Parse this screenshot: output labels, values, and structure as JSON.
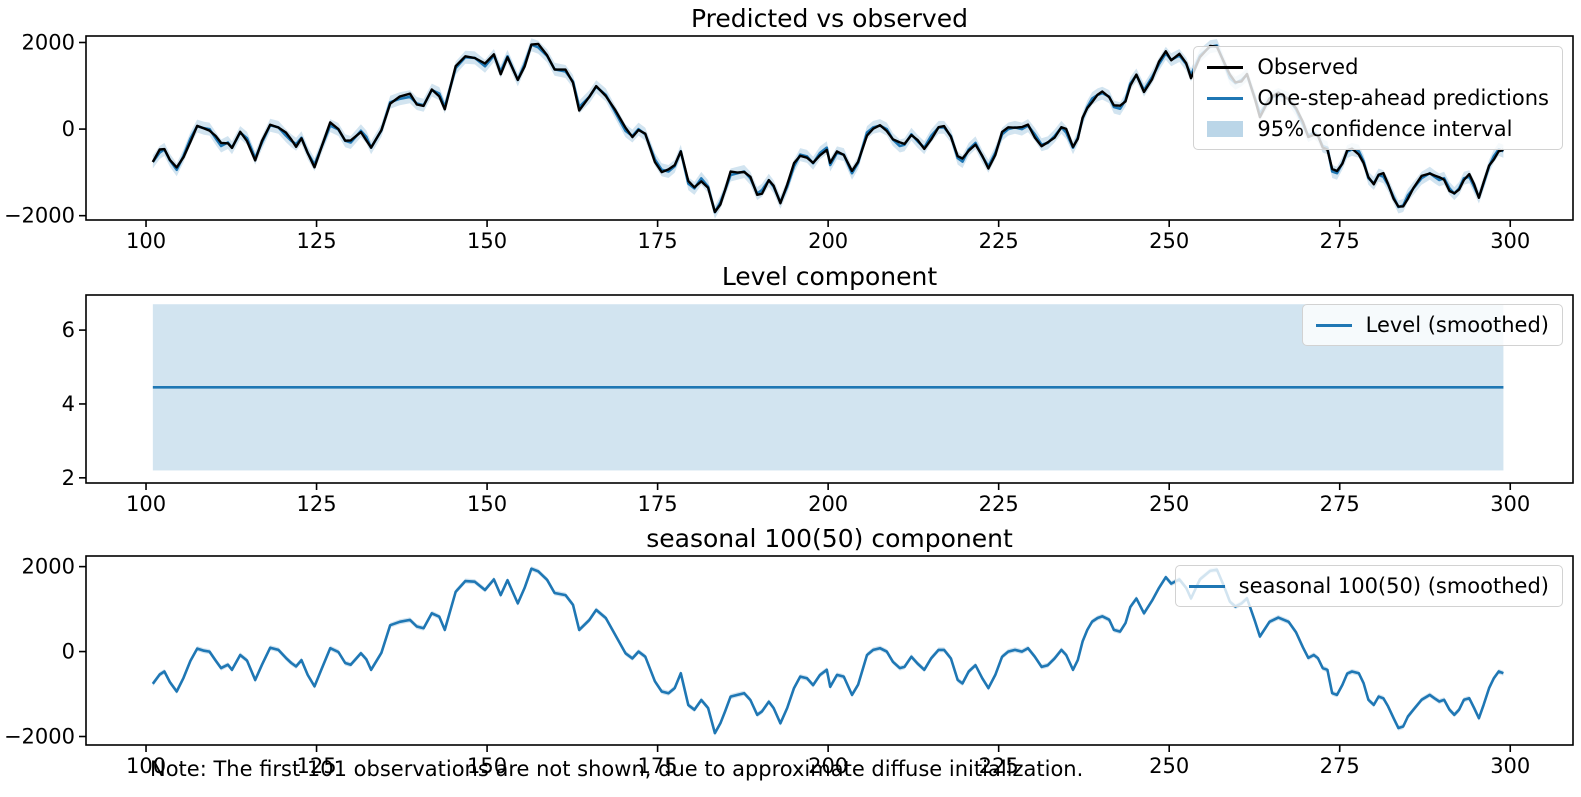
{
  "figure": {
    "note": "Note: The first 101 observations are not shown, due to approximate diffuse initialization."
  },
  "colors": {
    "observed": "#000000",
    "predicted": "#1f77b4",
    "ci_fill": "rgba(31,119,180,0.2)",
    "ci_legend_patch": "rgba(31,119,180,0.3)",
    "spine": "#000000"
  },
  "chart_data": [
    {
      "id": "predicted-vs-observed",
      "type": "line",
      "title": "Predicted vs observed",
      "xlim": [
        91.2,
        309.2
      ],
      "ylim": [
        -2100,
        2150
      ],
      "grid": false,
      "legend_position": "upper right",
      "x_ticks": {
        "values": [
          100,
          125,
          150,
          175,
          200,
          225,
          250,
          275,
          300
        ],
        "labels": [
          "100",
          "125",
          "150",
          "175",
          "200",
          "225",
          "250",
          "275",
          "300"
        ]
      },
      "y_ticks": {
        "values": [
          -2000,
          0,
          2000
        ],
        "labels": [
          "−2000",
          "0",
          "2000"
        ]
      },
      "legend": [
        {
          "label": "Observed",
          "swatch": "line",
          "color": "#000000"
        },
        {
          "label": "One-step-ahead predictions",
          "swatch": "line",
          "color": "#1f77b4"
        },
        {
          "label": "95% confidence interval",
          "swatch": "patch",
          "color": "rgba(31,119,180,0.3)"
        }
      ],
      "series": [
        {
          "name": "Observed",
          "source": "seasonal",
          "color": "#000000",
          "noise": {
            "amplitude": 85,
            "f1": 1.93,
            "f2": 0.73
          }
        },
        {
          "name": "One-step-ahead predictions",
          "source": "seasonal",
          "color": "#1f77b4"
        }
      ],
      "ci_halfwidth": 150
    },
    {
      "id": "level-component",
      "type": "line",
      "title": "Level component",
      "xlim": [
        91.2,
        309.2
      ],
      "ylim": [
        1.86,
        6.95
      ],
      "grid": false,
      "legend_position": "upper right",
      "x_ticks": {
        "values": [
          100,
          125,
          150,
          175,
          200,
          225,
          250,
          275,
          300
        ],
        "labels": [
          "100",
          "125",
          "150",
          "175",
          "200",
          "225",
          "250",
          "275",
          "300"
        ]
      },
      "y_ticks": {
        "values": [
          2,
          4,
          6
        ],
        "labels": [
          "2",
          "4",
          "6"
        ]
      },
      "legend": [
        {
          "label": "Level (smoothed)",
          "swatch": "line",
          "color": "#1f77b4"
        }
      ],
      "level_value": 4.45,
      "ci": [
        2.2,
        6.7
      ],
      "x_range": [
        101,
        299
      ]
    },
    {
      "id": "seasonal-component",
      "type": "line",
      "title": "seasonal 100(50) component",
      "xlim": [
        91.2,
        309.2
      ],
      "ylim": [
        -2200,
        2250
      ],
      "grid": false,
      "legend_position": "upper right",
      "x_ticks": {
        "values": [
          100,
          125,
          150,
          175,
          200,
          225,
          250,
          275,
          300
        ],
        "labels": [
          "100",
          "125",
          "150",
          "175",
          "200",
          "225",
          "250",
          "275",
          "300"
        ]
      },
      "y_ticks": {
        "values": [
          -2000,
          0,
          2000
        ],
        "labels": [
          "−2000",
          "0",
          "2000"
        ]
      },
      "legend": [
        {
          "label": "seasonal 100(50) (smoothed)",
          "swatch": "line",
          "color": "#1f77b4"
        }
      ],
      "series": [
        {
          "name": "seasonal 100(50) (smoothed)",
          "source": "seasonal",
          "color": "#1f77b4"
        }
      ],
      "ci_halfwidth": 60
    }
  ],
  "series_data": {
    "x": [
      101,
      102,
      102.7,
      103.5,
      104.5,
      105.5,
      106.5,
      107.5,
      108.5,
      109.3,
      110.2,
      111,
      112,
      112.6,
      113.8,
      114.8,
      116,
      117,
      118.2,
      119.4,
      120.5,
      121.3,
      122,
      122.8,
      123.7,
      124.7,
      125.7,
      127,
      128.2,
      129.2,
      130,
      131.5,
      132.3,
      133,
      134.5,
      135.8,
      137.2,
      138.7,
      139.7,
      140.7,
      141.9,
      143,
      143.8,
      145.4,
      146.8,
      148.2,
      149.7,
      151,
      152,
      153,
      154.5,
      155.5,
      156.5,
      157.5,
      158.8,
      159.9,
      161.5,
      162.6,
      163.5,
      165,
      166,
      167.4,
      168.8,
      170.3,
      171.3,
      172.2,
      173.2,
      174.6,
      175.6,
      176.6,
      177.5,
      178.4,
      179.5,
      180.4,
      181.4,
      182.4,
      183.4,
      184.2,
      184.9,
      185.7,
      186.7,
      187.7,
      188.6,
      189.6,
      190.3,
      191.3,
      192,
      193,
      194,
      195,
      195.9,
      196.9,
      197.8,
      198.8,
      199.8,
      200.3,
      201.3,
      202.3,
      203.5,
      204.4,
      205.7,
      206.6,
      207.6,
      208.6,
      209.5,
      210.5,
      211.2,
      212.2,
      213.1,
      214.1,
      215.1,
      216.2,
      217,
      218,
      219,
      219.7,
      220.6,
      221.6,
      222.6,
      223.5,
      224.5,
      225.5,
      226.4,
      227.4,
      228.4,
      229.3,
      230.3,
      231.3,
      232.2,
      233.2,
      234.2,
      234.9,
      235.9,
      236.6,
      237.3,
      238,
      238.7,
      239.5,
      240.2,
      241.2,
      241.9,
      242.8,
      243.6,
      244.3,
      245.2,
      246.3,
      247.5,
      248.5,
      249.5,
      250.3,
      251.5,
      252.5,
      253.2,
      254.5,
      256,
      257,
      258,
      258.9,
      259.7,
      260.6,
      261.4,
      262.6,
      263.3,
      264.7,
      266,
      267.5,
      268.6,
      269.6,
      270.4,
      271.2,
      271.8,
      272.5,
      273.2,
      273.9,
      274.6,
      275.4,
      276.1,
      276.8,
      277.8,
      278.5,
      279.2,
      280,
      280.7,
      281.4,
      282.1,
      282.9,
      283.6,
      284.3,
      285,
      285.8,
      287,
      288.2,
      288.9,
      289.6,
      290.3,
      291.1,
      291.8,
      292.5,
      293.2,
      294,
      294.7,
      295.4,
      296.1,
      296.9,
      297.6,
      298.3,
      299
    ],
    "seasonal": [
      -760,
      -540,
      -470,
      -720,
      -940,
      -620,
      -220,
      70,
      20,
      0,
      -210,
      -390,
      -310,
      -430,
      -80,
      -210,
      -670,
      -310,
      90,
      40,
      -150,
      -270,
      -350,
      -200,
      -550,
      -820,
      -430,
      80,
      -10,
      -270,
      -310,
      -40,
      -180,
      -430,
      -30,
      620,
      700,
      745,
      590,
      550,
      900,
      820,
      510,
      1410,
      1660,
      1645,
      1450,
      1700,
      1330,
      1680,
      1135,
      1500,
      1950,
      1890,
      1690,
      1380,
      1330,
      1100,
      510,
      745,
      980,
      790,
      390,
      -40,
      -160,
      0,
      -120,
      -700,
      -940,
      -980,
      -860,
      -510,
      -1260,
      -1370,
      -1140,
      -1330,
      -1920,
      -1690,
      -1410,
      -1060,
      -1020,
      -980,
      -1140,
      -1490,
      -1410,
      -1180,
      -1330,
      -1690,
      -1330,
      -860,
      -590,
      -630,
      -790,
      -550,
      -430,
      -830,
      -550,
      -590,
      -1020,
      -780,
      -80,
      40,
      80,
      0,
      -240,
      -390,
      -360,
      -120,
      -280,
      -430,
      -160,
      40,
      40,
      -160,
      -670,
      -750,
      -470,
      -320,
      -630,
      -860,
      -550,
      -120,
      0,
      40,
      0,
      80,
      -120,
      -360,
      -320,
      -160,
      40,
      -80,
      -430,
      -200,
      240,
      510,
      705,
      790,
      830,
      750,
      510,
      470,
      670,
      1050,
      1250,
      900,
      1200,
      1500,
      1750,
      1600,
      1700,
      1500,
      1250,
      1700,
      1900,
      1930,
      1550,
      1175,
      1060,
      1135,
      1255,
      705,
      355,
      700,
      800,
      700,
      450,
      100,
      -150,
      -80,
      -155,
      -390,
      -430,
      -980,
      -1020,
      -785,
      -520,
      -470,
      -510,
      -745,
      -1135,
      -1255,
      -1060,
      -1100,
      -1290,
      -1570,
      -1800,
      -1765,
      -1530,
      -1370,
      -1135,
      -1020,
      -1100,
      -1175,
      -1135,
      -1370,
      -1490,
      -1370,
      -1135,
      -1100,
      -1330,
      -1570,
      -1255,
      -860,
      -625,
      -470,
      -510
    ]
  }
}
